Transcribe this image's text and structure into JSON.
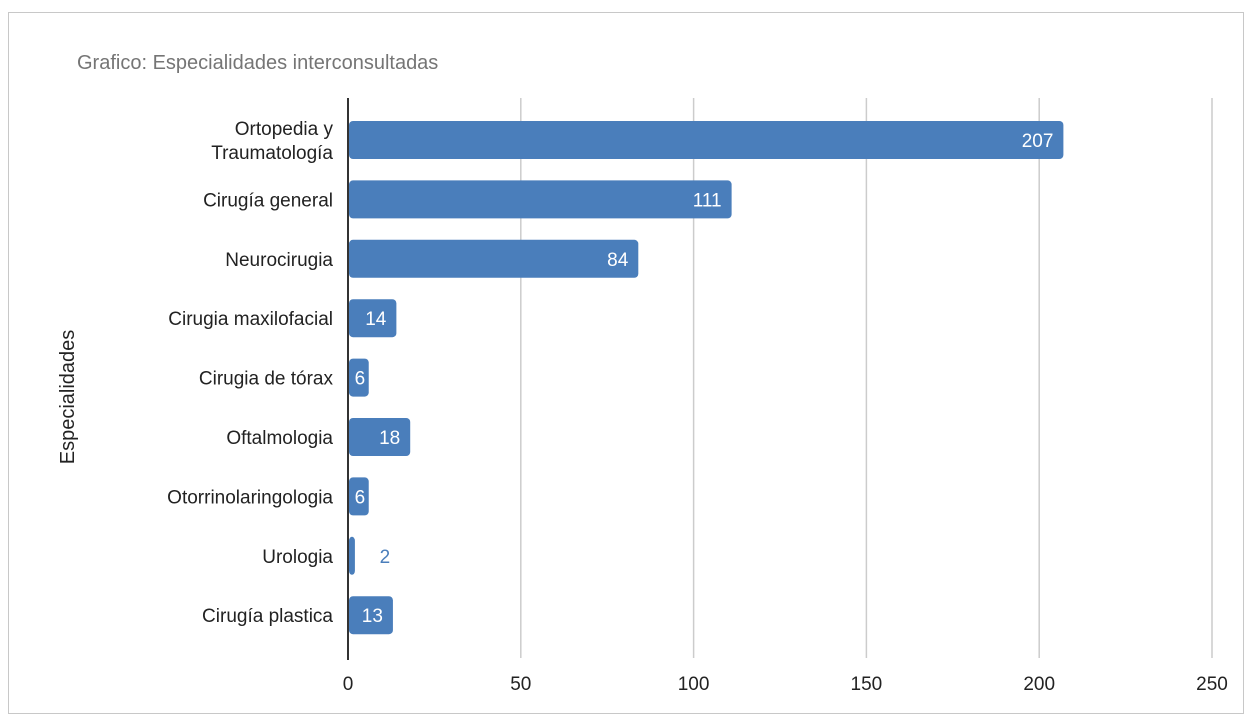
{
  "title": "Grafico: Especialidades interconsultadas",
  "chart_data": {
    "type": "bar",
    "orientation": "horizontal",
    "title": "Grafico: Especialidades interconsultadas",
    "ylabel": "Especialidades",
    "xlabel": "",
    "categories": [
      "Ortopedia y Traumatología",
      "Cirugía general",
      "Neurocirugia",
      "Cirugia maxilofacial",
      "Cirugia de tórax",
      "Oftalmologia",
      "Otorrinolaringologia",
      "Urologia",
      "Cirugía plastica"
    ],
    "category_lines": [
      [
        "Ortopedia y",
        "Traumatología"
      ],
      [
        "Cirugía general"
      ],
      [
        "Neurocirugia"
      ],
      [
        "Cirugia maxilofacial"
      ],
      [
        "Cirugia de tórax"
      ],
      [
        "Oftalmologia"
      ],
      [
        "Otorrinolaringologia"
      ],
      [
        "Urologia"
      ],
      [
        "Cirugía plastica"
      ]
    ],
    "values": [
      207,
      111,
      84,
      14,
      6,
      18,
      6,
      2,
      13
    ],
    "xlim": [
      0,
      250
    ],
    "xticks": [
      0,
      50,
      100,
      150,
      200,
      250
    ],
    "grid": true,
    "bar_color": "#4a7ebb",
    "label_inside_color": "#ffffff",
    "label_outside_color": "#4a7ebb"
  }
}
